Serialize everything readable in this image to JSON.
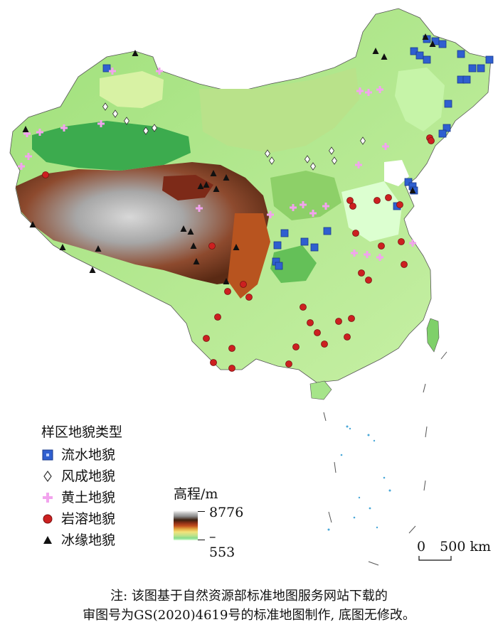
{
  "legend": {
    "title": "样区地貌类型",
    "items": [
      {
        "label": "流水地貌",
        "icon": "blue-square-icon",
        "color": "#2f5fd0"
      },
      {
        "label": "风成地貌",
        "icon": "white-diamond-icon",
        "color": "#ffffff"
      },
      {
        "label": "黄土地貌",
        "icon": "pink-cross-icon",
        "color": "#f2a3ee"
      },
      {
        "label": "岩溶地貌",
        "icon": "red-circle-icon",
        "color": "#cc2020"
      },
      {
        "label": "冰缘地貌",
        "icon": "black-triangle-icon",
        "color": "#111111"
      }
    ]
  },
  "elevation": {
    "title": "高程/m",
    "max": "8776",
    "min": "–553"
  },
  "scale_bar": {
    "zero": "0",
    "distance": "500 km"
  },
  "note": {
    "line1": "注: 该图基于自然资源部标准地图服务网站下载的",
    "line2": "审图号为GS(2020)4619号的标准地图制作, 底图无修改。"
  }
}
